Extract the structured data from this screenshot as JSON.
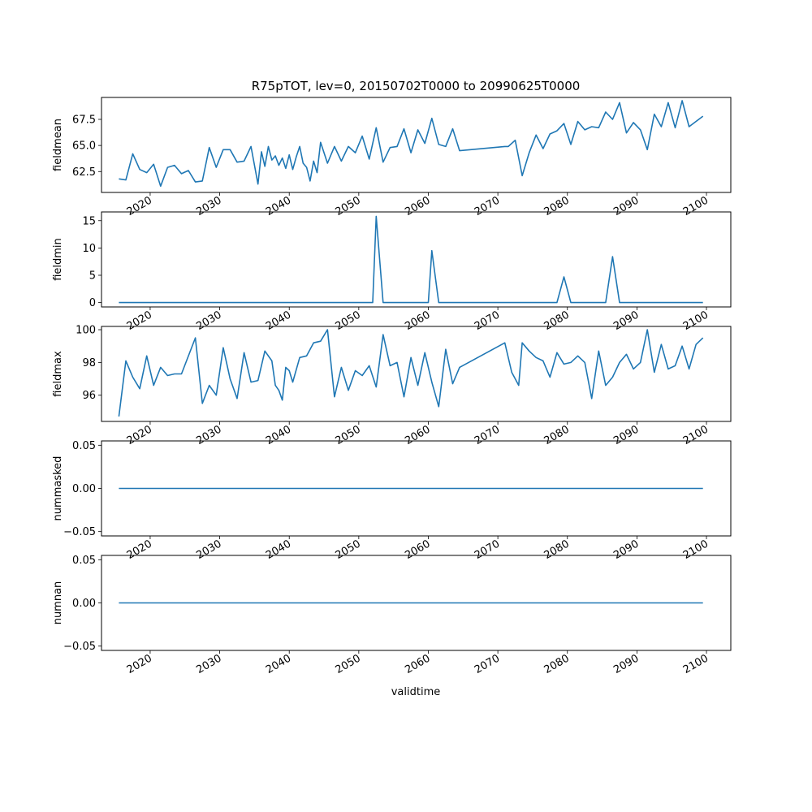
{
  "colors": {
    "series": "#1f77b4",
    "axes": "#000000",
    "background": "#ffffff"
  },
  "chart_data": {
    "type": "line",
    "title": "R75pTOT, lev=0, 20150702T0000 to 20990625T0000",
    "xlabel": "validtime",
    "xlim": [
      2013.0,
      2103.5
    ],
    "x_ticks": [
      2020,
      2030,
      2040,
      2050,
      2060,
      2070,
      2080,
      2090,
      2100
    ],
    "x_tick_labels": [
      "2020",
      "2030",
      "2040",
      "2050",
      "2060",
      "2070",
      "2080",
      "2090",
      "2100"
    ],
    "x_tick_rotation_deg": -30,
    "grid": false,
    "legend": "none",
    "panels": [
      {
        "ylabel": "fieldmean",
        "ylim": [
          60.5,
          69.6
        ],
        "y_ticks": [
          62.5,
          65.0,
          67.5
        ],
        "y_tick_labels": [
          "62.5",
          "65.0",
          "67.5"
        ],
        "series": [
          {
            "x": [
              2015.5,
              2016.5,
              2017.5,
              2018.5,
              2019.5,
              2020.5,
              2021.5,
              2022.5,
              2023.5,
              2024.5,
              2025.5,
              2026.5,
              2027.5,
              2028.5,
              2029.5,
              2030.5,
              2031.5,
              2032.5,
              2033.5,
              2034.5,
              2035.5,
              2036.0,
              2036.5,
              2037.0,
              2037.5,
              2038.0,
              2038.5,
              2039.0,
              2039.5,
              2040.0,
              2040.5,
              2041.0,
              2041.5,
              2042.0,
              2042.5,
              2043.0,
              2043.5,
              2044.0,
              2044.5,
              2045.5,
              2046.5,
              2047.5,
              2048.5,
              2049.5,
              2050.5,
              2051.5,
              2052.5,
              2053.5,
              2054.5,
              2055.5,
              2056.5,
              2057.5,
              2058.5,
              2059.5,
              2060.5,
              2061.5,
              2062.5,
              2063.5,
              2064.5,
              2071.0,
              2071.5,
              2072.5,
              2073.5,
              2074.5,
              2075.5,
              2076.5,
              2077.5,
              2078.5,
              2079.5,
              2080.5,
              2081.5,
              2082.5,
              2083.5,
              2084.5,
              2085.5,
              2086.5,
              2087.5,
              2088.5,
              2089.5,
              2090.5,
              2091.5,
              2092.5,
              2093.5,
              2094.5,
              2095.5,
              2096.5,
              2097.5,
              2099.5
            ],
            "y": [
              61.8,
              61.7,
              64.2,
              62.7,
              62.4,
              63.2,
              61.1,
              62.9,
              63.1,
              62.3,
              62.6,
              61.5,
              61.6,
              64.8,
              62.9,
              64.6,
              64.6,
              63.4,
              63.5,
              64.9,
              61.3,
              64.4,
              63.0,
              64.9,
              63.6,
              64.0,
              63.1,
              63.8,
              62.8,
              64.1,
              62.7,
              63.9,
              64.9,
              63.3,
              62.9,
              61.6,
              63.5,
              62.4,
              65.3,
              63.3,
              64.9,
              63.5,
              64.9,
              64.3,
              65.9,
              63.7,
              66.7,
              63.4,
              64.8,
              64.9,
              66.6,
              64.3,
              66.5,
              65.2,
              67.6,
              65.1,
              64.9,
              66.6,
              64.5,
              64.9,
              64.9,
              65.5,
              62.1,
              64.3,
              66.0,
              64.7,
              66.1,
              66.4,
              67.1,
              65.1,
              67.3,
              66.5,
              66.8,
              66.7,
              68.2,
              67.5,
              69.1,
              66.2,
              67.2,
              66.5,
              64.6,
              68.0,
              66.8,
              69.1,
              66.7,
              69.3,
              66.8,
              67.8
            ]
          }
        ]
      },
      {
        "ylabel": "fieldmin",
        "ylim": [
          -0.8,
          16.6
        ],
        "y_ticks": [
          0,
          5,
          10,
          15
        ],
        "y_tick_labels": [
          "0",
          "5",
          "10",
          "15"
        ],
        "series": [
          {
            "x": [
              2015.5,
              2052.0,
              2052.5,
              2053.5,
              2060.0,
              2060.5,
              2061.5,
              2078.5,
              2079.5,
              2080.5,
              2085.5,
              2086.5,
              2087.5,
              2099.5
            ],
            "y": [
              0,
              0,
              15.8,
              0,
              0,
              9.5,
              0,
              0,
              4.7,
              0,
              0,
              8.4,
              0,
              0
            ]
          }
        ]
      },
      {
        "ylabel": "fieldmax",
        "ylim": [
          94.4,
          100.2
        ],
        "y_ticks": [
          96,
          98,
          100
        ],
        "y_tick_labels": [
          "96",
          "98",
          "100"
        ],
        "series": [
          {
            "x": [
              2015.5,
              2016.5,
              2017.5,
              2018.5,
              2019.5,
              2020.5,
              2021.5,
              2022.5,
              2023.5,
              2024.5,
              2026.5,
              2027.5,
              2028.5,
              2029.5,
              2030.5,
              2031.5,
              2032.5,
              2033.5,
              2034.5,
              2035.5,
              2036.5,
              2037.5,
              2038.0,
              2038.5,
              2039.0,
              2039.5,
              2040.0,
              2040.5,
              2041.5,
              2042.5,
              2043.5,
              2044.5,
              2045.5,
              2046.5,
              2047.5,
              2048.5,
              2049.5,
              2050.5,
              2051.5,
              2052.5,
              2053.5,
              2054.5,
              2055.5,
              2056.5,
              2057.5,
              2058.5,
              2059.5,
              2060.5,
              2061.5,
              2062.5,
              2063.5,
              2064.5,
              2071.0,
              2072.0,
              2073.0,
              2073.5,
              2074.5,
              2075.5,
              2076.5,
              2077.5,
              2078.5,
              2079.5,
              2080.5,
              2081.5,
              2082.5,
              2083.5,
              2084.5,
              2085.5,
              2086.5,
              2087.5,
              2088.5,
              2089.5,
              2090.5,
              2091.5,
              2092.5,
              2093.5,
              2094.5,
              2095.5,
              2096.5,
              2097.5,
              2098.5,
              2099.5
            ],
            "y": [
              94.7,
              98.1,
              97.1,
              96.4,
              98.4,
              96.6,
              97.7,
              97.2,
              97.3,
              97.3,
              99.5,
              95.5,
              96.6,
              96.0,
              98.9,
              97.0,
              95.8,
              98.6,
              96.8,
              96.9,
              98.7,
              98.1,
              96.6,
              96.3,
              95.7,
              97.7,
              97.5,
              96.8,
              98.3,
              98.4,
              99.2,
              99.3,
              100.0,
              95.9,
              97.7,
              96.3,
              97.5,
              97.2,
              97.8,
              96.5,
              99.7,
              97.8,
              98.0,
              95.9,
              98.3,
              96.6,
              98.6,
              96.8,
              95.3,
              98.8,
              96.7,
              97.7,
              99.2,
              97.4,
              96.6,
              99.2,
              98.7,
              98.3,
              98.1,
              97.1,
              98.6,
              97.9,
              98.0,
              98.4,
              98.0,
              95.8,
              98.7,
              96.6,
              97.1,
              98.0,
              98.5,
              97.6,
              98.0,
              100.0,
              97.4,
              99.1,
              97.6,
              97.8,
              99.0,
              97.6,
              99.1,
              99.5
            ]
          }
        ]
      },
      {
        "ylabel": "nummasked",
        "ylim": [
          -0.055,
          0.055
        ],
        "y_ticks": [
          -0.05,
          0.0,
          0.05
        ],
        "y_tick_labels": [
          "−0.05",
          "0.00",
          "0.05"
        ],
        "series": [
          {
            "x": [
              2015.5,
              2099.5
            ],
            "y": [
              0,
              0
            ]
          }
        ]
      },
      {
        "ylabel": "numnan",
        "ylim": [
          -0.055,
          0.055
        ],
        "y_ticks": [
          -0.05,
          0.0,
          0.05
        ],
        "y_tick_labels": [
          "−0.05",
          "0.00",
          "0.05"
        ],
        "series": [
          {
            "x": [
              2015.5,
              2099.5
            ],
            "y": [
              0,
              0
            ]
          }
        ]
      }
    ]
  }
}
